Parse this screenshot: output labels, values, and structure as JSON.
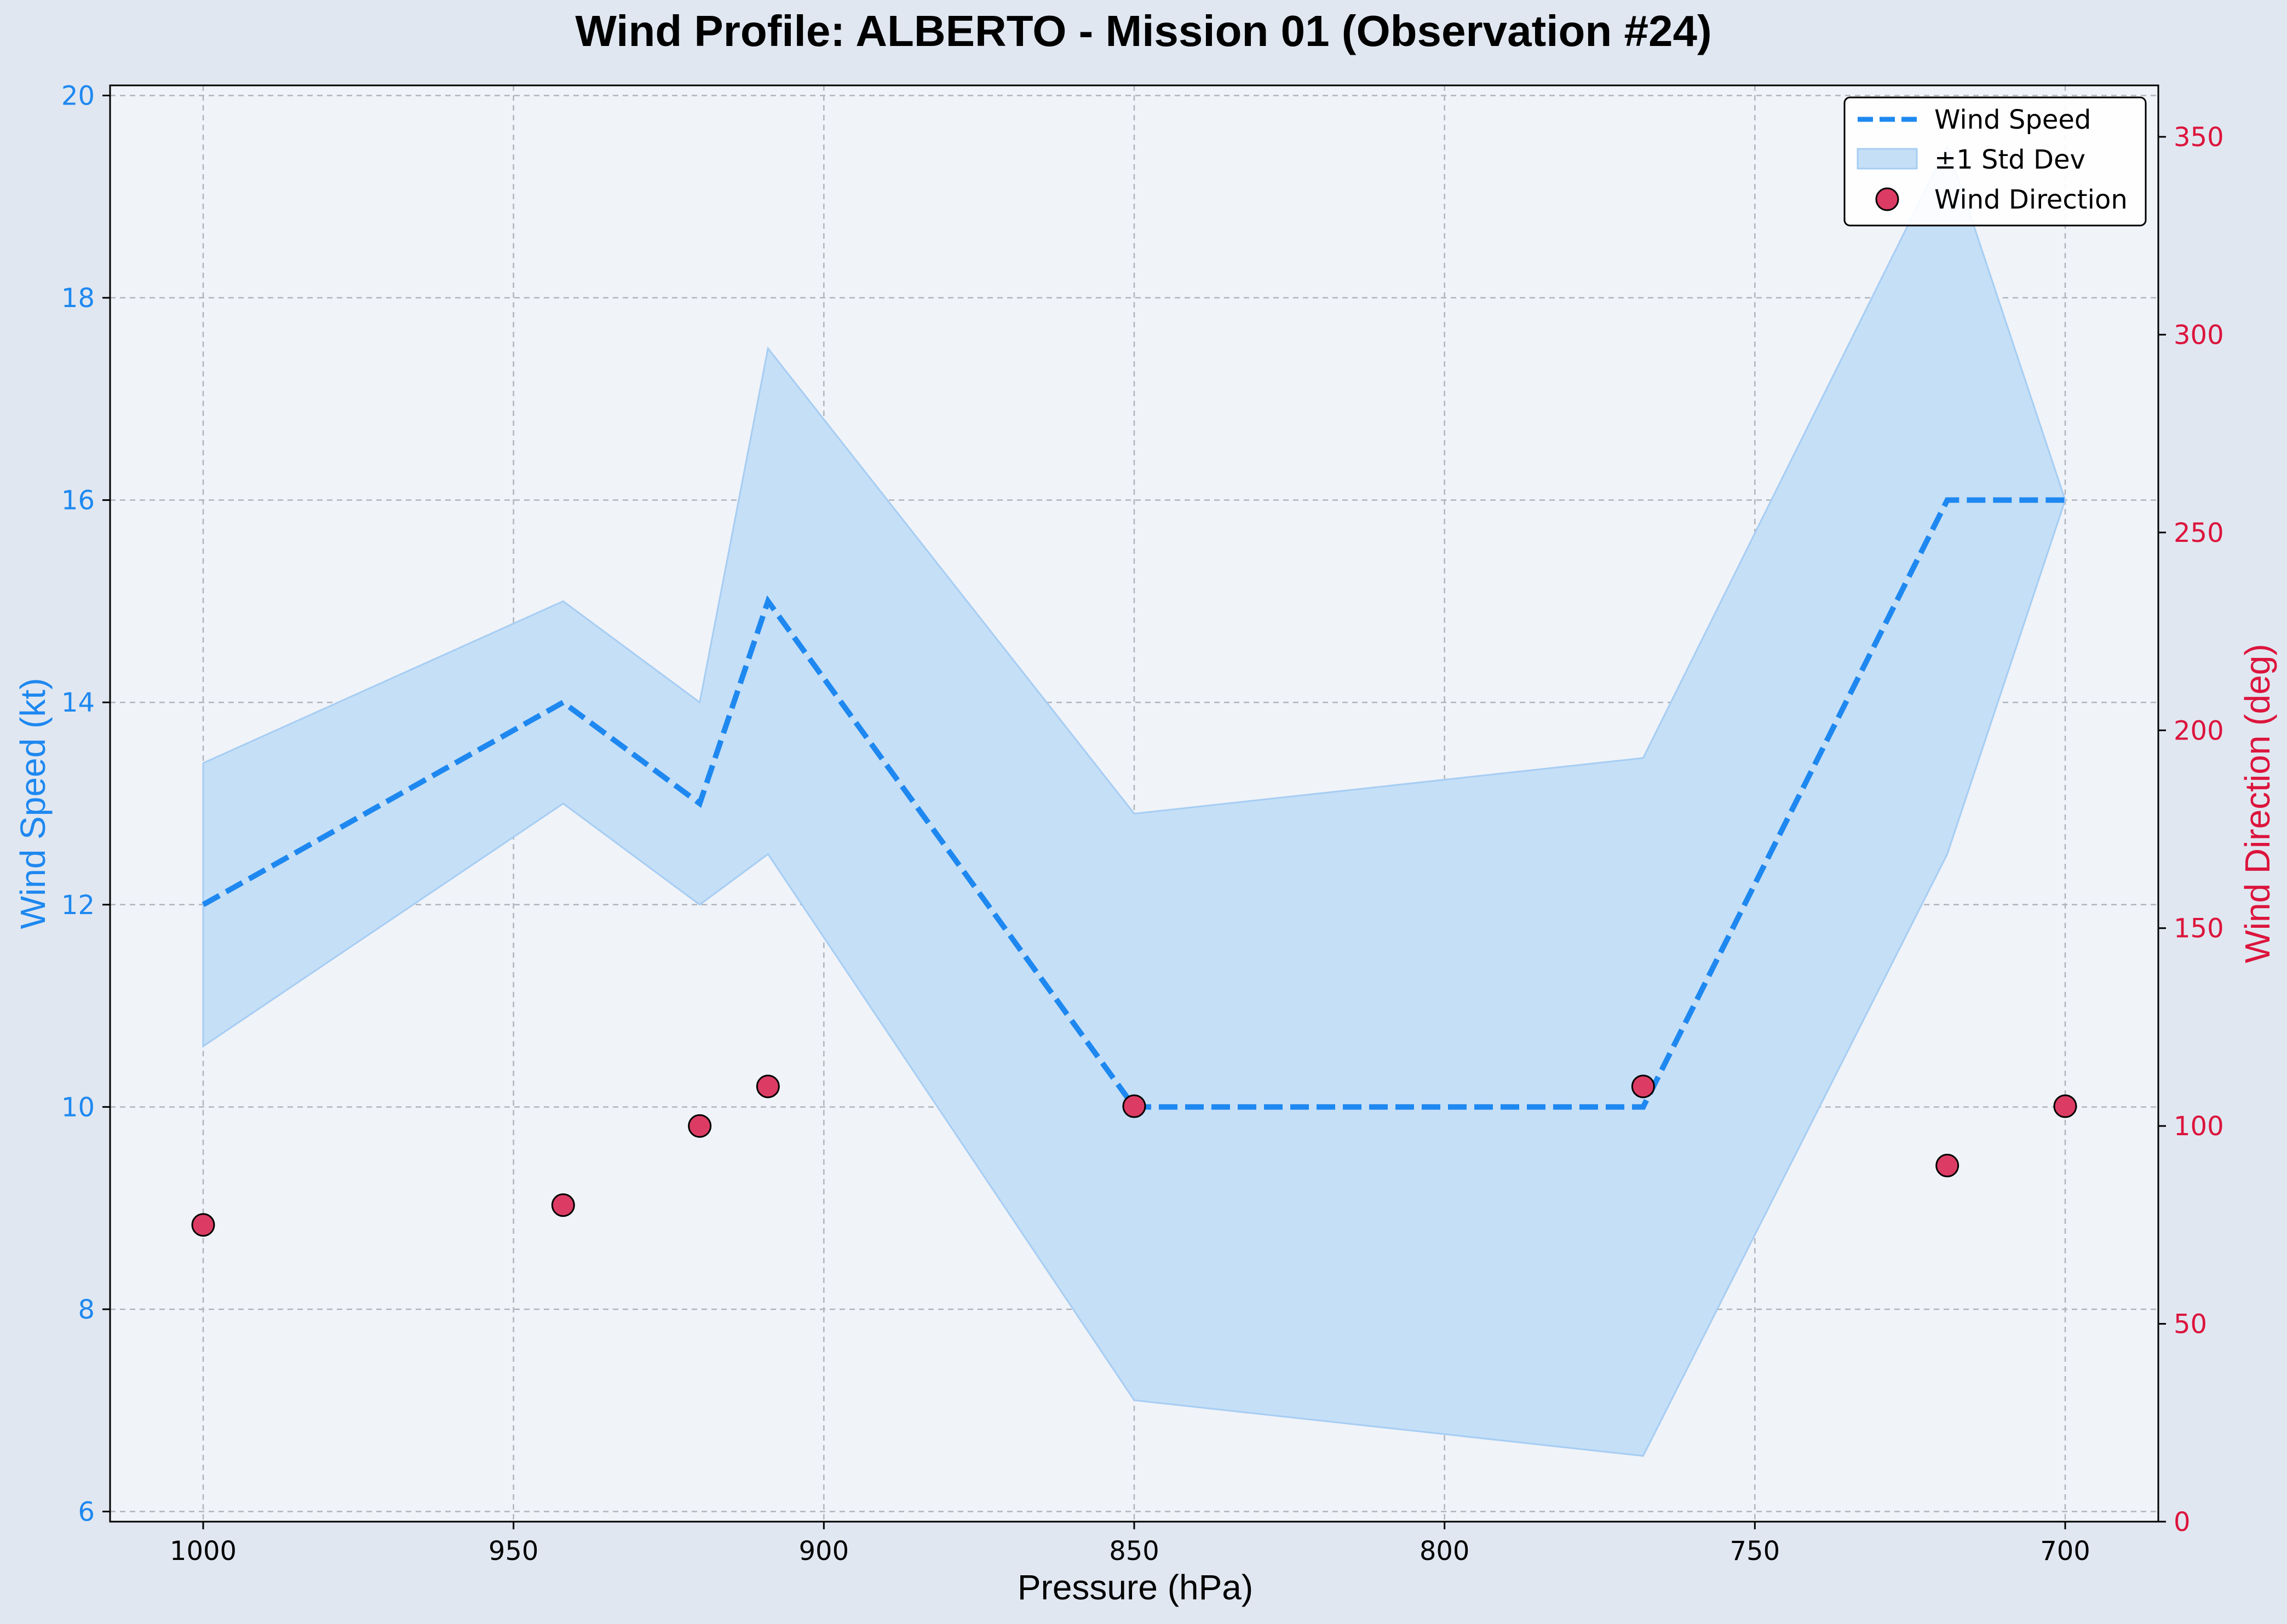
{
  "chart_data": {
    "type": "line",
    "title": "Wind Profile: ALBERTO - Mission 01 (Observation #24)",
    "xlabel": "Pressure (hPa)",
    "ylabel": "Wind Speed (kt)",
    "y2label": "Wind Direction (deg)",
    "xlim": [
      1015,
      685
    ],
    "x_inverted": true,
    "ylim": [
      5.9,
      20.1
    ],
    "y2lim": [
      0,
      363
    ],
    "xticks": [
      "1000",
      "950",
      "900",
      "850",
      "800",
      "750",
      "700"
    ],
    "yticks": [
      "6",
      "8",
      "10",
      "12",
      "14",
      "16",
      "18",
      "20"
    ],
    "y2ticks": [
      "0",
      "50",
      "100",
      "150",
      "200",
      "250",
      "300",
      "350"
    ],
    "grid": true,
    "legend_position": "top-right",
    "x": [
      1000,
      942,
      920,
      909,
      850,
      768,
      719,
      700
    ],
    "series": [
      {
        "name": "Wind Speed",
        "axis": "left",
        "style": "dashed-line",
        "color": "#1e88f0",
        "values": [
          12,
          14,
          13,
          15,
          10,
          10,
          16,
          16
        ]
      },
      {
        "name": "±1 Std Dev",
        "axis": "left",
        "style": "band",
        "color": "#1e88f0",
        "lower": [
          10.6,
          13.0,
          12.0,
          12.5,
          7.1,
          6.55,
          12.5,
          16.0
        ],
        "upper": [
          13.4,
          15.0,
          14.0,
          17.5,
          12.9,
          13.45,
          19.5,
          16.0
        ]
      },
      {
        "name": "Wind Direction",
        "axis": "right",
        "style": "scatter",
        "color": "#dc3c64",
        "values": [
          75,
          80,
          100,
          110,
          105,
          110,
          90,
          105
        ]
      }
    ],
    "colors": {
      "speed_axis": "#1e88f0",
      "direction_axis": "#dc143c",
      "plot_background": "#f0f3f8",
      "figure_background": "#e0e7f1",
      "band_fill": "#c5dff7",
      "grid": "#b0b4bc"
    }
  }
}
